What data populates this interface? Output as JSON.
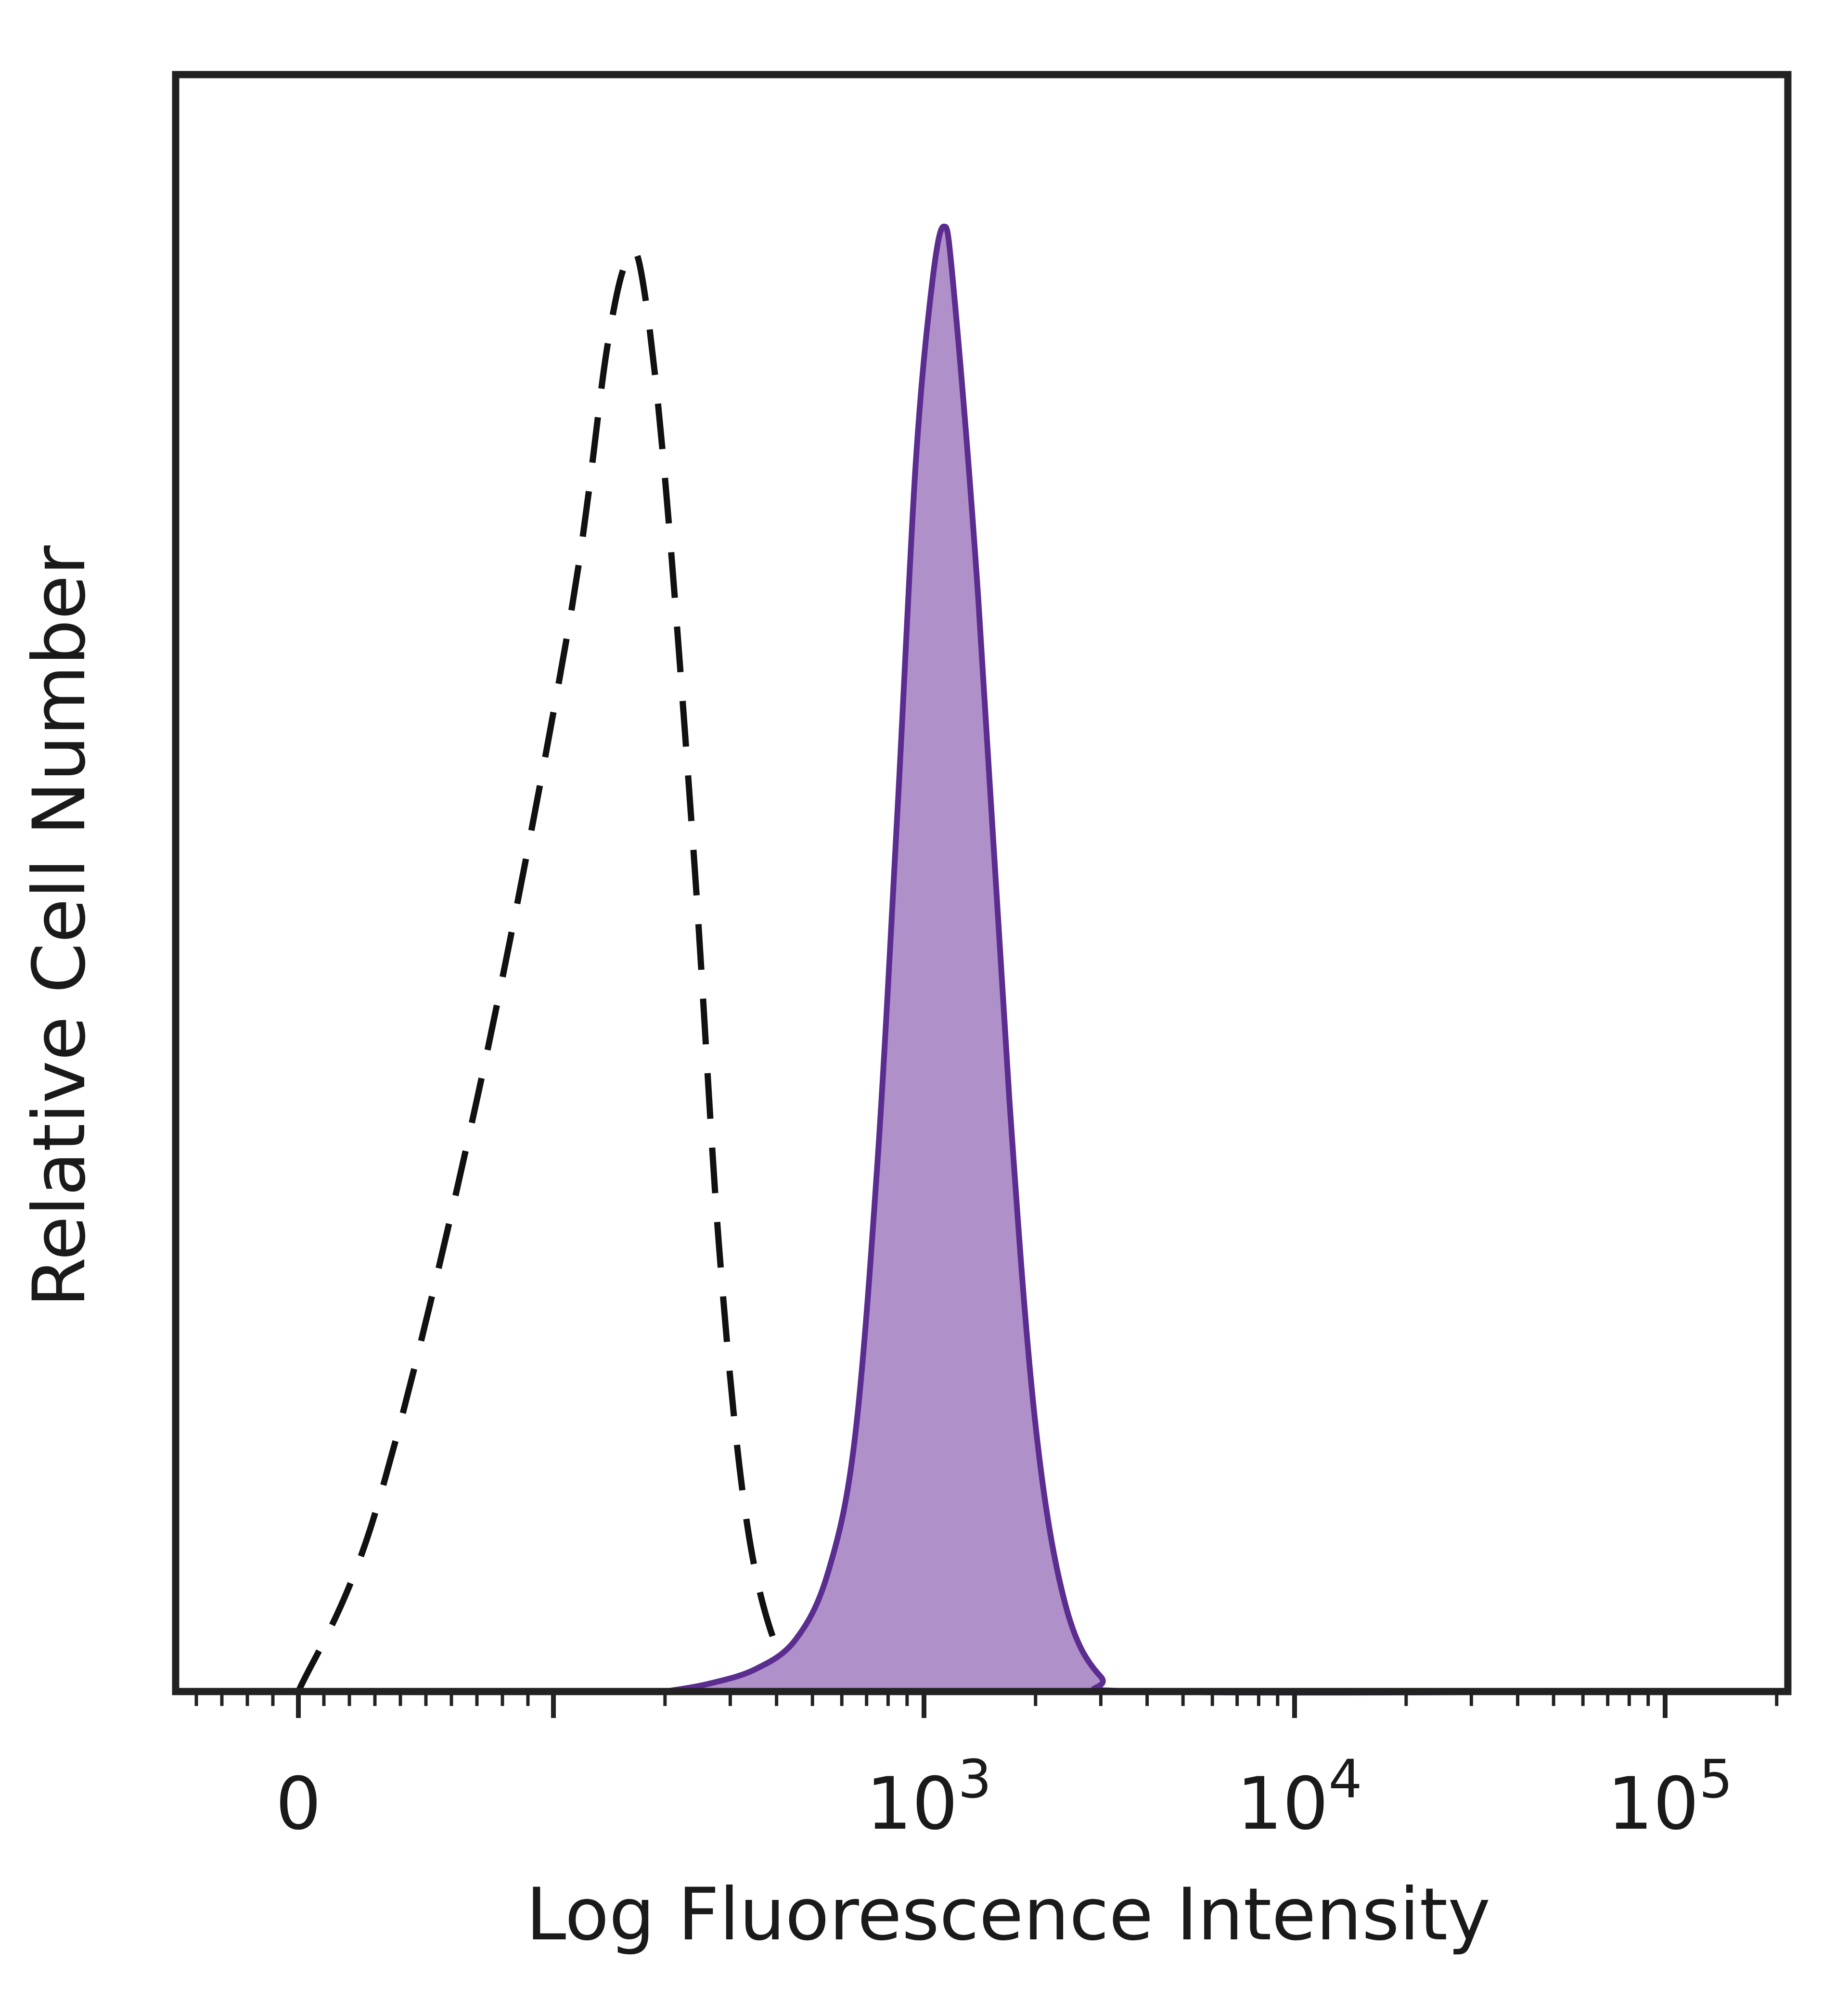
{
  "chart_data": {
    "type": "area",
    "xlabel": "Log Fluorescence Intensity",
    "ylabel": "Relative Cell Number",
    "x_scale": "biexponential",
    "x_ticks": [
      {
        "value": 0,
        "label": "0"
      },
      {
        "value": 1000,
        "label": "10",
        "sup": "3"
      },
      {
        "value": 10000,
        "label": "10",
        "sup": "4"
      },
      {
        "value": 100000,
        "label": "10",
        "sup": "5"
      }
    ],
    "ylim": [
      0,
      100
    ],
    "grid": false,
    "legend": "none",
    "series": [
      {
        "style": "dashed",
        "color": "#111111",
        "points": [
          [
            0,
            0
          ],
          [
            30,
            12
          ],
          [
            70,
            40
          ],
          [
            110,
            72
          ],
          [
            140,
            91
          ],
          [
            160,
            97
          ],
          [
            175,
            95
          ],
          [
            200,
            82
          ],
          [
            240,
            56
          ],
          [
            280,
            30
          ],
          [
            330,
            12
          ],
          [
            400,
            3
          ],
          [
            500,
            0
          ]
        ]
      },
      {
        "style": "filled",
        "color": "#5b2d90",
        "fill": "#b090c8",
        "points": [
          [
            200,
            0
          ],
          [
            260,
            0.5
          ],
          [
            350,
            1.5
          ],
          [
            450,
            3.5
          ],
          [
            550,
            8
          ],
          [
            650,
            17
          ],
          [
            750,
            36
          ],
          [
            850,
            60
          ],
          [
            950,
            83
          ],
          [
            1050,
            95
          ],
          [
            1130,
            99
          ],
          [
            1200,
            95
          ],
          [
            1400,
            74
          ],
          [
            1700,
            40
          ],
          [
            2000,
            18
          ],
          [
            2400,
            6
          ],
          [
            3000,
            1
          ],
          [
            4000,
            0
          ],
          [
            100000,
            0
          ]
        ]
      }
    ]
  }
}
